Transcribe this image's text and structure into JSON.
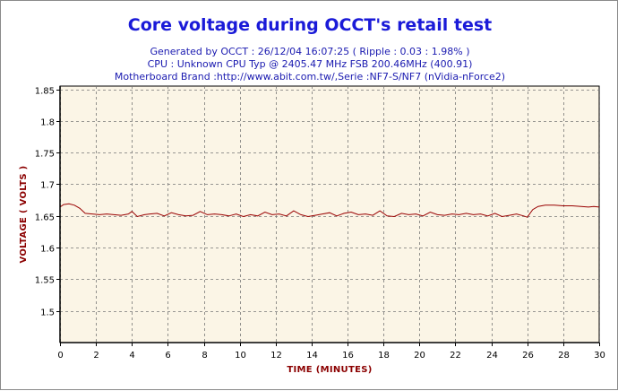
{
  "chart_data": {
    "type": "line",
    "title": "Core voltage during OCCT's retail test",
    "subtitle_lines": [
      "Generated by OCCT : 26/12/04 16:07:25 ( Ripple : 0.03 : 1.98% )",
      "CPU : Unknown CPU Typ @ 2405.47 MHz FSB 200.46MHz (400.91)",
      "Motherboard Brand :http://www.abit.com.tw/,Serie :NF7-S/NF7 (nVidia-nForce2)"
    ],
    "xlabel": "TIME (MINUTES)",
    "ylabel": "VOLTAGE ( VOLTS )",
    "xlim": [
      0,
      30
    ],
    "ylim": [
      1.45,
      1.855
    ],
    "xticks": [
      0,
      2,
      4,
      6,
      8,
      10,
      12,
      14,
      16,
      18,
      20,
      22,
      24,
      26,
      28,
      30
    ],
    "yticks": [
      1.5,
      1.55,
      1.6,
      1.65,
      1.7,
      1.75,
      1.8,
      1.85
    ],
    "ytick_labels": [
      "1.5",
      "1.55",
      "1.6",
      "1.65",
      "1.7",
      "1.75",
      "1.8",
      "1.85"
    ],
    "grid": true,
    "colors": {
      "line": "#990000",
      "plot_bg": "#fbf5e6",
      "title": "#1a1ad8",
      "subtitle": "#1a1ab0",
      "axis_label": "#8b0000"
    },
    "series": [
      {
        "x": [
          0,
          0.2,
          0.5,
          0.8,
          1.1,
          1.4,
          1.8,
          2.2,
          2.6,
          3,
          3.4,
          3.8,
          4.0,
          4.3,
          4.7,
          5,
          5.4,
          5.8,
          6.2,
          6.6,
          7,
          7.4,
          7.8,
          8.2,
          8.6,
          9,
          9.4,
          9.8,
          10.2,
          10.6,
          11,
          11.4,
          11.8,
          12.2,
          12.6,
          13,
          13.4,
          13.8,
          14.2,
          14.6,
          15,
          15.4,
          15.8,
          16.2,
          16.6,
          17,
          17.4,
          17.8,
          18.2,
          18.6,
          19,
          19.4,
          19.8,
          20.2,
          20.6,
          21,
          21.4,
          21.8,
          22.2,
          22.6,
          23,
          23.4,
          23.8,
          24.2,
          24.6,
          25,
          25.4,
          25.8,
          26.0,
          26.3,
          26.6,
          27,
          27.5,
          28,
          28.5,
          29,
          29.4,
          29.7,
          30
        ],
        "y": [
          1.664,
          1.668,
          1.669,
          1.667,
          1.662,
          1.654,
          1.653,
          1.652,
          1.653,
          1.652,
          1.651,
          1.653,
          1.657,
          1.649,
          1.652,
          1.653,
          1.654,
          1.65,
          1.655,
          1.652,
          1.65,
          1.651,
          1.657,
          1.652,
          1.653,
          1.652,
          1.65,
          1.653,
          1.649,
          1.652,
          1.65,
          1.656,
          1.652,
          1.653,
          1.65,
          1.658,
          1.652,
          1.649,
          1.651,
          1.653,
          1.655,
          1.65,
          1.654,
          1.656,
          1.652,
          1.653,
          1.651,
          1.658,
          1.65,
          1.649,
          1.654,
          1.652,
          1.653,
          1.65,
          1.656,
          1.652,
          1.651,
          1.653,
          1.652,
          1.654,
          1.652,
          1.653,
          1.65,
          1.654,
          1.649,
          1.651,
          1.653,
          1.65,
          1.648,
          1.66,
          1.665,
          1.667,
          1.667,
          1.666,
          1.666,
          1.665,
          1.664,
          1.665,
          1.664
        ]
      }
    ]
  }
}
